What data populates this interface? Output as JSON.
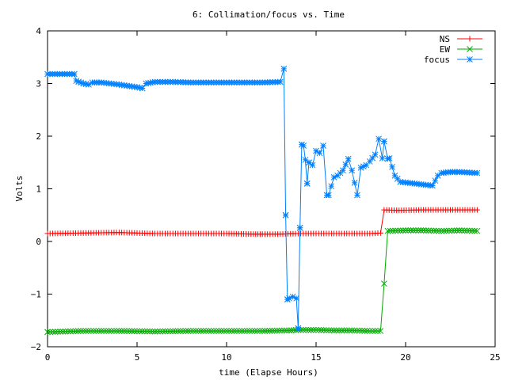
{
  "chart_data": {
    "type": "line",
    "title": "6: Collimation/focus vs. Time",
    "xlabel": "time (Elapse Hours)",
    "ylabel": "Volts",
    "xlim": [
      0,
      25
    ],
    "ylim": [
      -2,
      4
    ],
    "xticks": [
      0,
      5,
      10,
      15,
      20,
      25
    ],
    "yticks": [
      -2,
      -1,
      0,
      1,
      2,
      3,
      4
    ],
    "grid": false,
    "legend": "top-right",
    "series": [
      {
        "name": "NS",
        "color": "#ff0000",
        "marker": "plus",
        "x": [
          0,
          2,
          4,
          6,
          8,
          10,
          11.5,
          12,
          13,
          14,
          15,
          16,
          17,
          18,
          18.6,
          18.8,
          19.5,
          21,
          22.5,
          24
        ],
        "y": [
          0.15,
          0.16,
          0.17,
          0.15,
          0.15,
          0.15,
          0.14,
          0.14,
          0.14,
          0.15,
          0.15,
          0.15,
          0.15,
          0.15,
          0.16,
          0.6,
          0.59,
          0.6,
          0.6,
          0.6
        ]
      },
      {
        "name": "EW",
        "color": "#00aa00",
        "marker": "cross",
        "x": [
          0,
          2,
          4,
          6,
          8,
          10,
          12,
          13.5,
          14,
          15,
          16,
          17,
          18,
          18.6,
          18.8,
          19,
          20,
          21,
          22,
          23,
          24
        ],
        "y": [
          -1.72,
          -1.7,
          -1.7,
          -1.71,
          -1.7,
          -1.7,
          -1.7,
          -1.69,
          -1.68,
          -1.68,
          -1.69,
          -1.69,
          -1.7,
          -1.7,
          -0.8,
          0.2,
          0.21,
          0.21,
          0.2,
          0.21,
          0.2
        ]
      },
      {
        "name": "focus",
        "color": "#0080ff",
        "marker": "star",
        "x": [
          0,
          1.5,
          1.6,
          2.0,
          2.3,
          2.5,
          3.0,
          4.0,
          5.0,
          5.3,
          5.5,
          6.0,
          7.0,
          8.0,
          10.0,
          12.0,
          13.0,
          13.2,
          13.3,
          13.4,
          13.5,
          13.7,
          13.9,
          14.0,
          14.1,
          14.2,
          14.3,
          14.4,
          14.5,
          14.6,
          14.8,
          15.0,
          15.2,
          15.4,
          15.6,
          15.7,
          16.0,
          16.2,
          16.5,
          16.8,
          17.0,
          17.3,
          17.5,
          17.8,
          18.0,
          18.3,
          18.5,
          18.7,
          18.8,
          19.0,
          19.1,
          19.4,
          19.7,
          20.0,
          20.5,
          21.0,
          21.5,
          21.8,
          22.0,
          22.5,
          23.0,
          24.0
        ],
        "y": [
          3.18,
          3.18,
          3.05,
          3.0,
          2.98,
          3.02,
          3.02,
          2.98,
          2.93,
          2.91,
          3.0,
          3.03,
          3.03,
          3.02,
          3.02,
          3.02,
          3.03,
          3.28,
          0.5,
          -1.1,
          -1.08,
          -1.05,
          -1.08,
          -1.65,
          0.26,
          1.84,
          1.82,
          1.55,
          1.1,
          1.5,
          1.45,
          1.72,
          1.68,
          1.82,
          0.88,
          0.88,
          1.22,
          1.25,
          1.35,
          1.57,
          1.35,
          0.88,
          1.4,
          1.45,
          1.52,
          1.65,
          1.95,
          1.58,
          1.9,
          1.57,
          1.58,
          1.25,
          1.13,
          1.12,
          1.1,
          1.08,
          1.06,
          1.25,
          1.3,
          1.32,
          1.32,
          1.3
        ]
      }
    ]
  }
}
